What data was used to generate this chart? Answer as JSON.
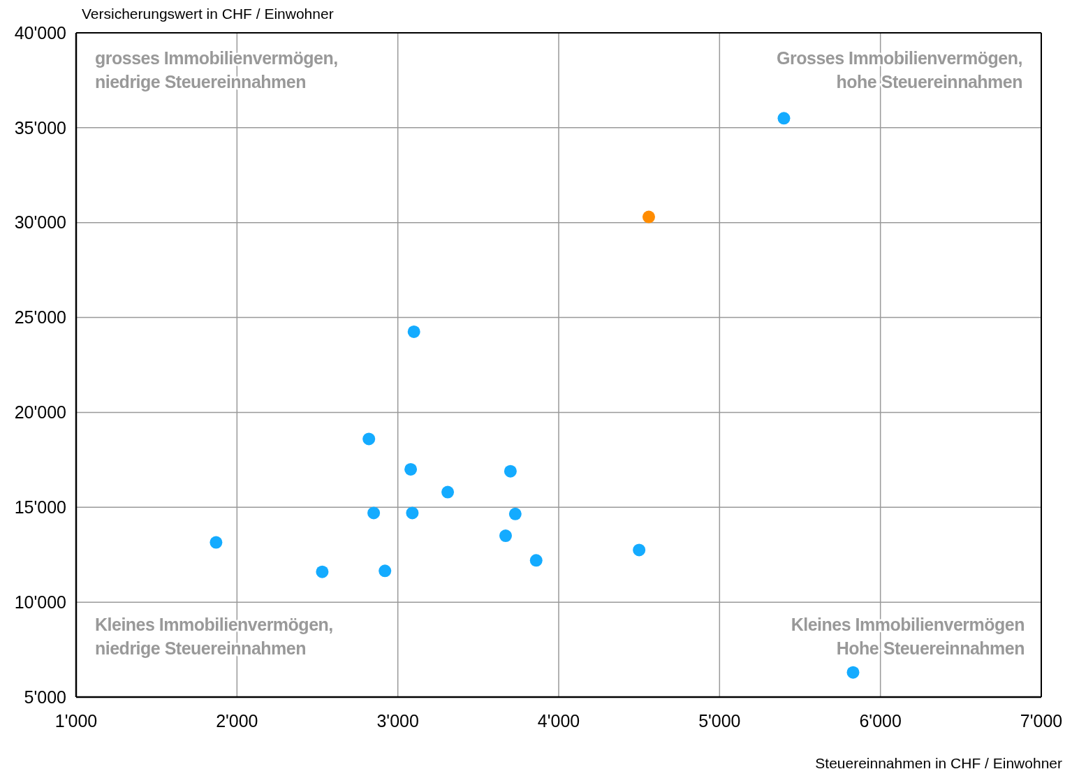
{
  "chart_data": {
    "type": "scatter",
    "xlabel": "Steuereinnahmen in CHF / Einwohner",
    "ylabel": "Versicherungswert in CHF / Einwohner",
    "xlim": [
      1000,
      7000
    ],
    "xticks": [
      {
        "value": 1000,
        "label": "1'000"
      },
      {
        "value": 2000,
        "label": "2'000"
      },
      {
        "value": 3000,
        "label": "3'000"
      },
      {
        "value": 4000,
        "label": "4'000"
      },
      {
        "value": 5000,
        "label": "5'000"
      },
      {
        "value": 6000,
        "label": "6'000"
      },
      {
        "value": 7000,
        "label": "7'000"
      }
    ],
    "ylim": [
      5000,
      40000
    ],
    "yticks": [
      {
        "value": 5000,
        "label": "5'000"
      },
      {
        "value": 10000,
        "label": "10'000"
      },
      {
        "value": 15000,
        "label": "15'000"
      },
      {
        "value": 20000,
        "label": "20'000"
      },
      {
        "value": 25000,
        "label": "25'000"
      },
      {
        "value": 30000,
        "label": "30'000"
      },
      {
        "value": 35000,
        "label": "35'000"
      },
      {
        "value": 40000,
        "label": "40'000"
      }
    ],
    "grid": true,
    "marker": "circle",
    "legend": false,
    "series": [
      {
        "color": "#ff8c00",
        "x": [
          4560
        ],
        "values": [
          30300
        ]
      },
      {
        "color": "#14abff",
        "x": [
          5400,
          3100,
          2820,
          3080,
          3700,
          3310,
          2850,
          3090,
          3730,
          3670,
          1870,
          3860,
          4500,
          2530,
          2920,
          5830
        ],
        "values": [
          35500,
          24250,
          18600,
          17000,
          16900,
          15800,
          14700,
          14700,
          14650,
          13500,
          13150,
          12200,
          12750,
          11600,
          11650,
          6300
        ]
      }
    ],
    "annotations": [
      "grosses Immobilienvermögen,\nniedrige Steuereinnahmen",
      "Grosses Immobilienvermögen,\nhohe Steuereinnahmen",
      "Kleines Immobilienvermögen,\nniedrige Steuereinnahmen",
      "Kleines Immobilienvermögen\nHohe Steuereinnahmen"
    ]
  }
}
